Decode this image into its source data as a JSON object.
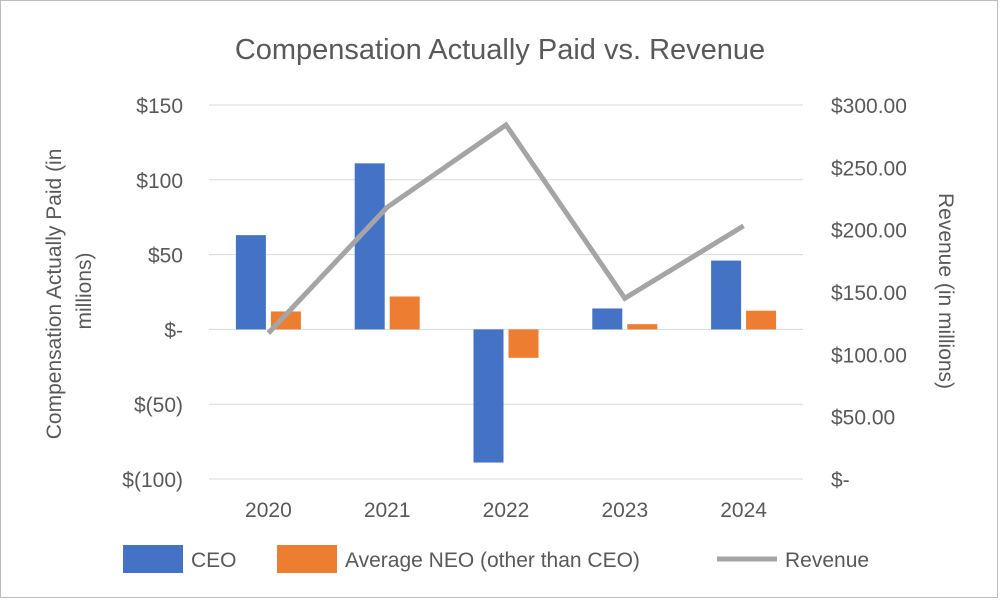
{
  "chart_data": {
    "type": "bar+line",
    "title": "Compensation Actually Paid vs. Revenue",
    "categories": [
      "2020",
      "2021",
      "2022",
      "2023",
      "2024"
    ],
    "series": [
      {
        "name": "CEO",
        "type": "bar",
        "axis": "left",
        "color": "#4472C4",
        "values": [
          63,
          111,
          -89,
          14,
          46
        ]
      },
      {
        "name": "Average NEO (other than CEO)",
        "type": "bar",
        "axis": "left",
        "color": "#ED7D31",
        "values": [
          12,
          22,
          -19,
          3.5,
          12.5
        ]
      },
      {
        "name": "Revenue",
        "type": "line",
        "axis": "right",
        "color": "#A5A5A5",
        "values": [
          117,
          218,
          284,
          145,
          203
        ]
      }
    ],
    "y_left": {
      "label": "Compensation Actually Paid (in millions)",
      "label_lines": [
        "Compensation Actually Paid (in",
        "millions)"
      ],
      "range": [
        -100,
        150
      ],
      "ticks": [
        150,
        100,
        50,
        0,
        -50,
        -100
      ],
      "tick_labels": [
        "$150",
        "$100",
        "$50",
        "$-",
        "$(50)",
        "$(100)"
      ]
    },
    "y_right": {
      "label": "Revenue (in millions)",
      "range": [
        0,
        300
      ],
      "ticks": [
        300,
        250,
        200,
        150,
        100,
        50,
        0
      ],
      "tick_labels": [
        "$300.00",
        "$250.00",
        "$200.00",
        "$150.00",
        "$100.00",
        "$50.00",
        "$-"
      ]
    },
    "grid": true,
    "legend_position": "bottom"
  },
  "colors": {
    "grid": "#d9d9d9",
    "text": "#595959"
  }
}
